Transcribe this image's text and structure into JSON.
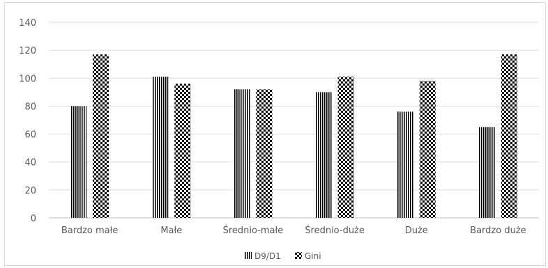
{
  "chart_data": {
    "type": "bar",
    "categories": [
      "Bardzo małe",
      "Małe",
      "Średnio-małe",
      "Średnio-duże",
      "Duże",
      "Bardzo duże"
    ],
    "series": [
      {
        "name": "D9/D1",
        "values": [
          80,
          101,
          92,
          90,
          76,
          65
        ]
      },
      {
        "name": "Gini",
        "values": [
          117,
          96,
          92,
          101,
          98,
          117
        ]
      }
    ],
    "ylim": [
      0,
      140
    ],
    "yticks": [
      0,
      20,
      40,
      60,
      80,
      100,
      120,
      140
    ],
    "grid": true,
    "legend": "bottom",
    "colors": {
      "grid": "#d9d9d9",
      "axis": "#bfbfbf",
      "ink": "#000000",
      "text": "#595959"
    }
  }
}
